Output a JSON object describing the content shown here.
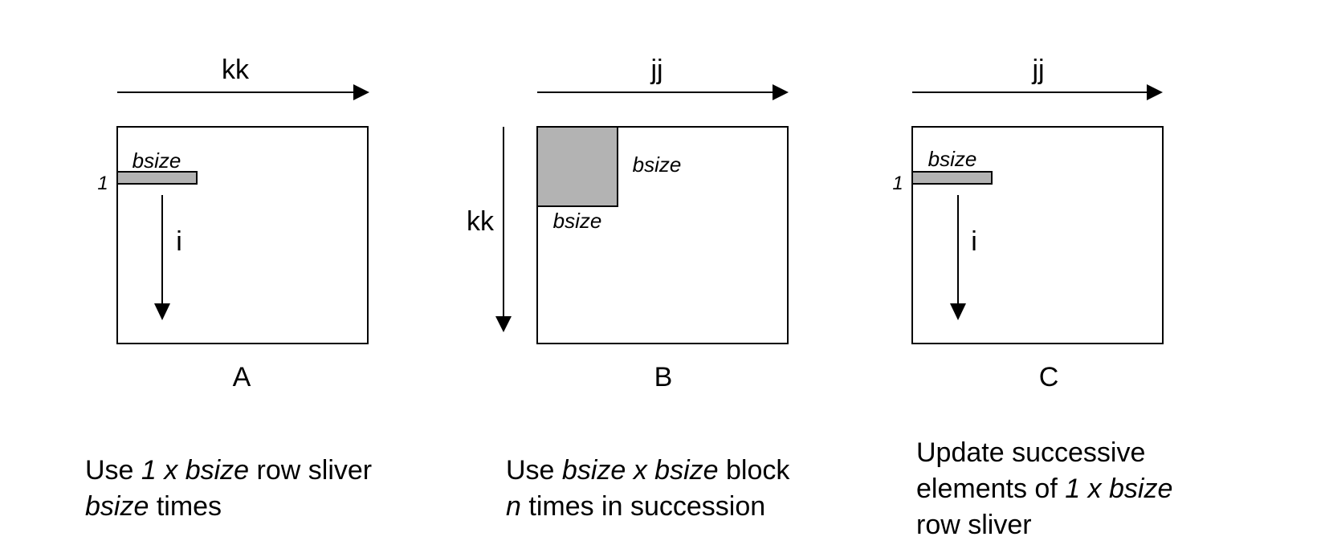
{
  "panels": [
    {
      "name": "A",
      "top_axis": "kk",
      "side_axis": "",
      "inner_axis": "i",
      "sliver_label": "bsize",
      "row_label": "1",
      "caption": [
        [
          {
            "t": "Use "
          },
          {
            "t": "1 x bsize",
            "i": true
          },
          {
            "t": " row sliver"
          }
        ],
        [
          {
            "t": "bsize",
            "i": true
          },
          {
            "t": " times"
          }
        ]
      ]
    },
    {
      "name": "B",
      "top_axis": "jj",
      "side_axis": "kk",
      "block_label_right": "bsize",
      "block_label_bottom": "bsize",
      "caption": [
        [
          {
            "t": "Use "
          },
          {
            "t": "bsize x bsize",
            "i": true
          },
          {
            "t": " block"
          }
        ],
        [
          {
            "t": "n",
            "i": true
          },
          {
            "t": " times in succession"
          }
        ]
      ]
    },
    {
      "name": "C",
      "top_axis": "jj",
      "inner_axis": "i",
      "sliver_label": "bsize",
      "row_label": "1",
      "caption": [
        [
          {
            "t": "Update successive"
          }
        ],
        [
          {
            "t": "elements of "
          },
          {
            "t": "1 x bsize",
            "i": true
          }
        ],
        [
          {
            "t": "row sliver"
          }
        ]
      ]
    }
  ],
  "colors": {
    "block_fill": "#b3b3b3",
    "stroke": "#000000"
  }
}
